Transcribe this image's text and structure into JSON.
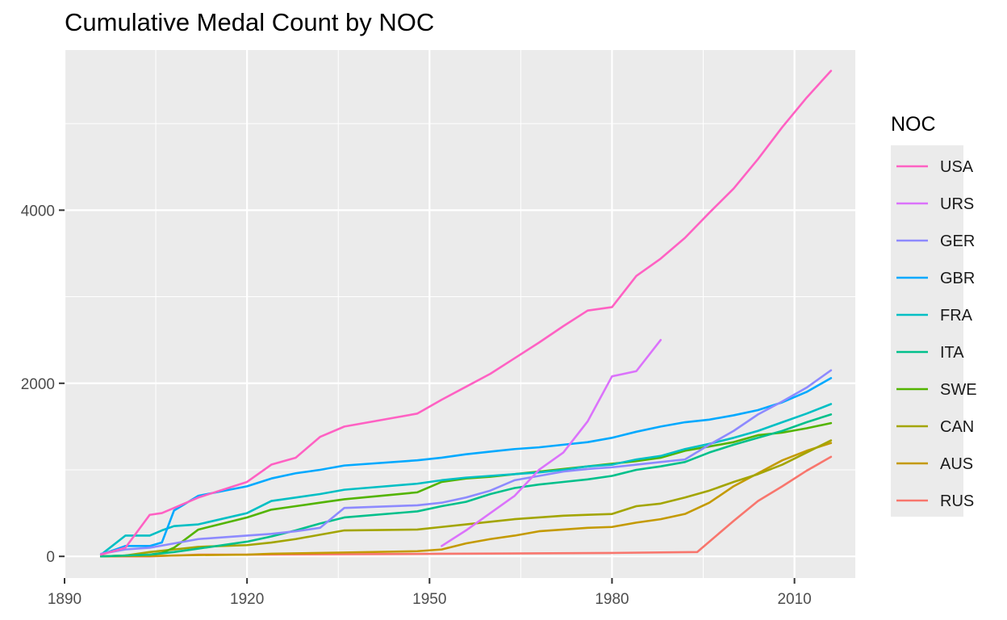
{
  "chart_data": {
    "type": "line",
    "title": "Cumulative Medal Count by NOC",
    "xlabel": "",
    "ylabel": "",
    "xlim": [
      1890,
      2020
    ],
    "ylim": [
      -250,
      5850
    ],
    "x_ticks": [
      1890,
      1920,
      1950,
      1980,
      2010
    ],
    "y_ticks": [
      0,
      2000,
      4000
    ],
    "grid": true,
    "legend": {
      "title": "NOC",
      "position": "right"
    },
    "series": [
      {
        "name": "USA",
        "color": "#FF61C3",
        "x": [
          1896,
          1900,
          1904,
          1906,
          1908,
          1912,
          1920,
          1924,
          1928,
          1932,
          1936,
          1948,
          1952,
          1956,
          1960,
          1964,
          1968,
          1972,
          1976,
          1980,
          1984,
          1988,
          1992,
          1996,
          2000,
          2004,
          2008,
          2012,
          2016
        ],
        "y": [
          20,
          100,
          480,
          500,
          560,
          680,
          860,
          1060,
          1140,
          1380,
          1500,
          1650,
          1810,
          1960,
          2110,
          2290,
          2470,
          2660,
          2840,
          2880,
          3240,
          3440,
          3680,
          3970,
          4250,
          4590,
          4960,
          5300,
          5610
        ]
      },
      {
        "name": "URS",
        "color": "#DB72FB",
        "x": [
          1952,
          1956,
          1960,
          1964,
          1968,
          1972,
          1976,
          1980,
          1984,
          1988
        ],
        "y": [
          120,
          300,
          500,
          700,
          1000,
          1200,
          1560,
          2080,
          2140,
          2500
        ]
      },
      {
        "name": "GER",
        "color": "#8D8AFF",
        "x": [
          1896,
          1900,
          1904,
          1908,
          1912,
          1920,
          1924,
          1928,
          1932,
          1936,
          1948,
          1952,
          1956,
          1960,
          1964,
          1968,
          1972,
          1976,
          1980,
          1984,
          1988,
          1992,
          1996,
          2000,
          2004,
          2008,
          2012,
          2016
        ],
        "y": [
          30,
          80,
          100,
          150,
          200,
          240,
          260,
          290,
          330,
          560,
          590,
          620,
          680,
          760,
          880,
          930,
          980,
          1010,
          1030,
          1060,
          1090,
          1120,
          1290,
          1450,
          1640,
          1790,
          1950,
          2150
        ]
      },
      {
        "name": "GBR",
        "color": "#00A9FF",
        "x": [
          1896,
          1900,
          1904,
          1906,
          1908,
          1912,
          1920,
          1924,
          1928,
          1932,
          1936,
          1948,
          1952,
          1956,
          1960,
          1964,
          1968,
          1972,
          1976,
          1980,
          1984,
          1988,
          1992,
          1996,
          2000,
          2004,
          2008,
          2012,
          2016
        ],
        "y": [
          20,
          120,
          120,
          160,
          530,
          700,
          810,
          900,
          960,
          1000,
          1050,
          1110,
          1140,
          1180,
          1210,
          1240,
          1260,
          1290,
          1320,
          1370,
          1440,
          1500,
          1550,
          1580,
          1630,
          1690,
          1780,
          1900,
          2060
        ]
      },
      {
        "name": "FRA",
        "color": "#00BFC4",
        "x": [
          1896,
          1900,
          1904,
          1906,
          1908,
          1912,
          1920,
          1924,
          1928,
          1932,
          1936,
          1948,
          1952,
          1956,
          1960,
          1964,
          1968,
          1972,
          1976,
          1980,
          1984,
          1988,
          1992,
          1996,
          2000,
          2004,
          2008,
          2012,
          2016
        ],
        "y": [
          20,
          240,
          240,
          300,
          350,
          370,
          500,
          640,
          680,
          720,
          770,
          840,
          880,
          910,
          930,
          950,
          970,
          1000,
          1040,
          1060,
          1120,
          1160,
          1240,
          1300,
          1370,
          1450,
          1550,
          1650,
          1760
        ]
      },
      {
        "name": "ITA",
        "color": "#00C08B",
        "x": [
          1896,
          1900,
          1904,
          1908,
          1912,
          1920,
          1924,
          1928,
          1932,
          1936,
          1948,
          1952,
          1956,
          1960,
          1964,
          1968,
          1972,
          1976,
          1980,
          1984,
          1988,
          1992,
          1996,
          2000,
          2004,
          2008,
          2012,
          2016
        ],
        "y": [
          0,
          10,
          20,
          50,
          90,
          170,
          230,
          300,
          380,
          450,
          520,
          580,
          630,
          720,
          790,
          830,
          860,
          890,
          930,
          1000,
          1040,
          1090,
          1200,
          1290,
          1370,
          1450,
          1550,
          1640
        ]
      },
      {
        "name": "SWE",
        "color": "#53B400",
        "x": [
          1896,
          1900,
          1904,
          1906,
          1908,
          1912,
          1920,
          1924,
          1928,
          1932,
          1936,
          1948,
          1952,
          1956,
          1960,
          1964,
          1968,
          1972,
          1976,
          1980,
          1984,
          1988,
          1992,
          1996,
          2000,
          2004,
          2008,
          2012,
          2016
        ],
        "y": [
          0,
          10,
          20,
          40,
          100,
          310,
          450,
          540,
          580,
          620,
          660,
          740,
          860,
          900,
          920,
          950,
          980,
          1010,
          1040,
          1070,
          1100,
          1140,
          1220,
          1270,
          1320,
          1400,
          1430,
          1480,
          1540
        ]
      },
      {
        "name": "CAN",
        "color": "#A3A500",
        "x": [
          1896,
          1900,
          1904,
          1908,
          1912,
          1920,
          1924,
          1928,
          1932,
          1936,
          1948,
          1952,
          1956,
          1960,
          1964,
          1968,
          1972,
          1976,
          1980,
          1984,
          1988,
          1992,
          1996,
          2000,
          2004,
          2008,
          2012,
          2016
        ],
        "y": [
          0,
          10,
          50,
          80,
          110,
          130,
          160,
          200,
          250,
          300,
          310,
          340,
          370,
          400,
          430,
          450,
          470,
          480,
          490,
          580,
          610,
          680,
          760,
          860,
          950,
          1060,
          1200,
          1340
        ]
      },
      {
        "name": "AUS",
        "color": "#C49A00",
        "x": [
          1896,
          1900,
          1904,
          1908,
          1912,
          1920,
          1924,
          1928,
          1932,
          1936,
          1948,
          1952,
          1956,
          1960,
          1964,
          1968,
          1972,
          1976,
          1980,
          1984,
          1988,
          1992,
          1996,
          2000,
          2004,
          2008,
          2012,
          2016
        ],
        "y": [
          0,
          5,
          5,
          10,
          15,
          20,
          30,
          35,
          40,
          45,
          60,
          80,
          150,
          200,
          240,
          290,
          310,
          330,
          340,
          390,
          430,
          490,
          620,
          810,
          960,
          1110,
          1220,
          1310
        ]
      },
      {
        "name": "RUS",
        "color": "#F8766D",
        "x": [
          1896,
          1900,
          1904,
          1908,
          1912,
          1920,
          1952,
          1980,
          1994,
          1996,
          2000,
          2004,
          2008,
          2012,
          2016
        ],
        "y": [
          0,
          0,
          0,
          10,
          20,
          20,
          30,
          40,
          50,
          170,
          410,
          640,
          810,
          990,
          1150
        ]
      }
    ]
  }
}
